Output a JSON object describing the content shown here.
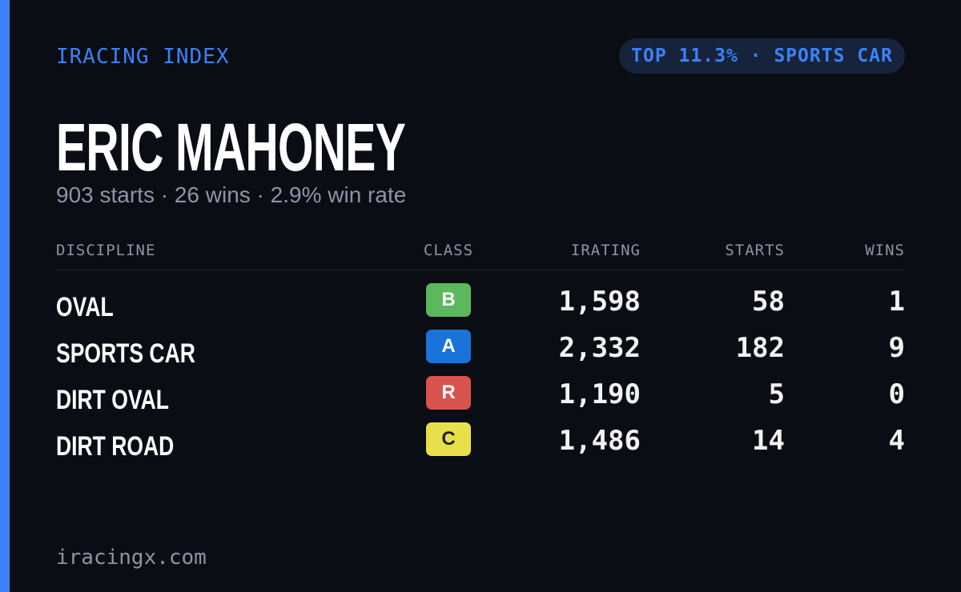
{
  "header": {
    "brand": "IRACING INDEX",
    "badge": "TOP 11.3% · SPORTS CAR"
  },
  "driver": {
    "name": "ERIC MAHONEY",
    "summary": "903 starts · 26 wins · 2.9% win rate"
  },
  "table": {
    "columns": [
      "DISCIPLINE",
      "CLASS",
      "IRATING",
      "STARTS",
      "WINS"
    ],
    "rows": [
      [
        "OVAL",
        "B",
        "1,598",
        "58",
        "1"
      ],
      [
        "SPORTS CAR",
        "A",
        "2,332",
        "182",
        "9"
      ],
      [
        "DIRT OVAL",
        "R",
        "1,190",
        "5",
        "0"
      ],
      [
        "DIRT ROAD",
        "C",
        "1,486",
        "14",
        "4"
      ]
    ],
    "class_colors": {
      "B": "#5cb85c",
      "A": "#1a73d9",
      "R": "#d9534f",
      "C": "#e8e04a"
    }
  },
  "footer": {
    "site": "iracingx.com"
  }
}
